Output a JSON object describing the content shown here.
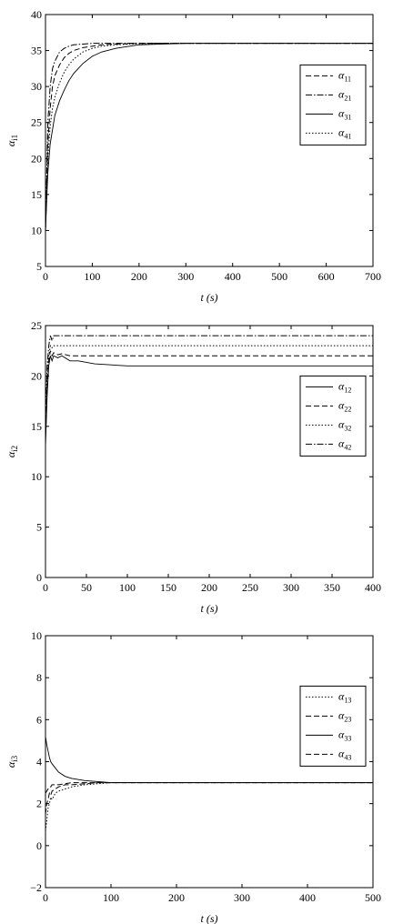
{
  "chart_data": [
    {
      "type": "line",
      "xlabel": "t (s)",
      "ylabel": {
        "base": "α",
        "sub": "i1"
      },
      "x": [
        0,
        5,
        10,
        15,
        20,
        30,
        40,
        50,
        60,
        80,
        100,
        120,
        150,
        200,
        250,
        300,
        400,
        500,
        600,
        700
      ],
      "series": [
        {
          "name": {
            "base": "α",
            "sub": "11"
          },
          "color": "#000000",
          "dash": "dashed",
          "values": [
            10,
            22,
            27,
            30,
            31.5,
            33,
            34,
            34.6,
            35,
            35.4,
            35.6,
            35.8,
            35.9,
            36,
            36,
            36,
            36,
            36,
            36,
            36
          ]
        },
        {
          "name": {
            "base": "α",
            "sub": "21"
          },
          "color": "#000000",
          "dash": "dashdot",
          "values": [
            10,
            25,
            30,
            32.5,
            33.5,
            34.8,
            35.3,
            35.6,
            35.8,
            35.9,
            36,
            36,
            36,
            36,
            36,
            36,
            36,
            36,
            36,
            36
          ]
        },
        {
          "name": {
            "base": "α",
            "sub": "31"
          },
          "color": "#000000",
          "dash": "solid",
          "values": [
            10,
            18,
            22,
            24,
            26,
            28,
            29.5,
            30.8,
            31.8,
            33.2,
            34.2,
            34.8,
            35.3,
            35.8,
            35.9,
            36,
            36,
            36,
            36,
            36
          ]
        },
        {
          "name": {
            "base": "α",
            "sub": "41"
          },
          "color": "#000000",
          "dash": "dotted",
          "values": [
            10,
            20,
            24.5,
            27,
            28.5,
            30.5,
            32,
            33,
            33.8,
            34.8,
            35.3,
            35.6,
            35.8,
            35.95,
            36,
            36,
            36,
            36,
            36,
            36
          ]
        }
      ],
      "xlim": [
        0,
        700
      ],
      "xticks": [
        0,
        100,
        200,
        300,
        400,
        500,
        600,
        700
      ],
      "ylim": [
        5,
        40
      ],
      "yticks": [
        5,
        10,
        15,
        20,
        25,
        30,
        35,
        40
      ],
      "grid": false,
      "legend": "right"
    },
    {
      "type": "line",
      "xlabel": "t (s)",
      "ylabel": {
        "base": "α",
        "sub": "i2"
      },
      "x": [
        0,
        2,
        4,
        6,
        8,
        10,
        15,
        20,
        30,
        40,
        60,
        80,
        100,
        150,
        200,
        300,
        400
      ],
      "series": [
        {
          "name": {
            "base": "α",
            "sub": "12"
          },
          "color": "#000000",
          "dash": "solid",
          "values": [
            13,
            18,
            21,
            22,
            21.5,
            22,
            21.8,
            22,
            21.5,
            21.5,
            21.2,
            21.1,
            21,
            21,
            21,
            21,
            21
          ]
        },
        {
          "name": {
            "base": "α",
            "sub": "22"
          },
          "color": "#000000",
          "dash": "dashed",
          "values": [
            14,
            19,
            21.5,
            22.5,
            22,
            22.3,
            22.1,
            22.2,
            22,
            22,
            22,
            22,
            22,
            22,
            22,
            22,
            22
          ]
        },
        {
          "name": {
            "base": "α",
            "sub": "32"
          },
          "color": "#000000",
          "dash": "dotted",
          "values": [
            15,
            20,
            22,
            23,
            22.8,
            23,
            23,
            23,
            23,
            23,
            23,
            23,
            23,
            23,
            23,
            23,
            23
          ]
        },
        {
          "name": {
            "base": "α",
            "sub": "42"
          },
          "color": "#000000",
          "dash": "dashdot",
          "values": [
            16,
            21,
            23,
            24,
            23.5,
            24,
            24,
            24,
            24,
            24,
            24,
            24,
            24,
            24,
            24,
            24,
            24
          ]
        }
      ],
      "xlim": [
        0,
        400
      ],
      "xticks": [
        0,
        50,
        100,
        150,
        200,
        250,
        300,
        350,
        400
      ],
      "ylim": [
        0,
        25
      ],
      "yticks": [
        0,
        5,
        10,
        15,
        20,
        25
      ],
      "grid": false,
      "legend": "right"
    },
    {
      "type": "line",
      "xlabel": "t (s)",
      "ylabel": {
        "base": "α",
        "sub": "i3"
      },
      "x": [
        0,
        2,
        4,
        6,
        8,
        10,
        15,
        20,
        30,
        40,
        60,
        80,
        100,
        150,
        200,
        300,
        400,
        500
      ],
      "series": [
        {
          "name": {
            "base": "α",
            "sub": "13"
          },
          "color": "#000000",
          "dash": "dotted",
          "values": [
            0.7,
            1.2,
            1.8,
            2,
            2.3,
            2.2,
            2.5,
            2.6,
            2.7,
            2.8,
            2.9,
            2.95,
            3,
            3,
            3,
            3,
            3,
            3
          ]
        },
        {
          "name": {
            "base": "α",
            "sub": "23"
          },
          "color": "#000000",
          "dash": "dashed",
          "values": [
            1.5,
            2,
            2.2,
            2.5,
            2.4,
            2.6,
            2.7,
            2.8,
            2.9,
            2.9,
            2.95,
            3,
            3,
            3,
            3,
            3,
            3,
            3
          ]
        },
        {
          "name": {
            "base": "α",
            "sub": "33"
          },
          "color": "#000000",
          "dash": "solid",
          "values": [
            5.2,
            4.8,
            4.5,
            4.2,
            4,
            3.9,
            3.7,
            3.5,
            3.3,
            3.2,
            3.1,
            3.05,
            3,
            3,
            3,
            3,
            3,
            3
          ]
        },
        {
          "name": {
            "base": "α",
            "sub": "43"
          },
          "color": "#000000",
          "dash": "dashed",
          "values": [
            2.5,
            2.6,
            2.7,
            2.8,
            2.8,
            2.9,
            2.9,
            2.9,
            2.95,
            3,
            3,
            3,
            3,
            3,
            3,
            3,
            3,
            3
          ]
        }
      ],
      "xlim": [
        0,
        500
      ],
      "xticks": [
        0,
        100,
        200,
        300,
        400,
        500
      ],
      "ylim": [
        -2,
        10
      ],
      "yticks": [
        {
          "value": -2,
          "label": "−2"
        },
        0,
        2,
        4,
        6,
        8,
        10
      ],
      "grid": false,
      "legend": "right"
    }
  ]
}
